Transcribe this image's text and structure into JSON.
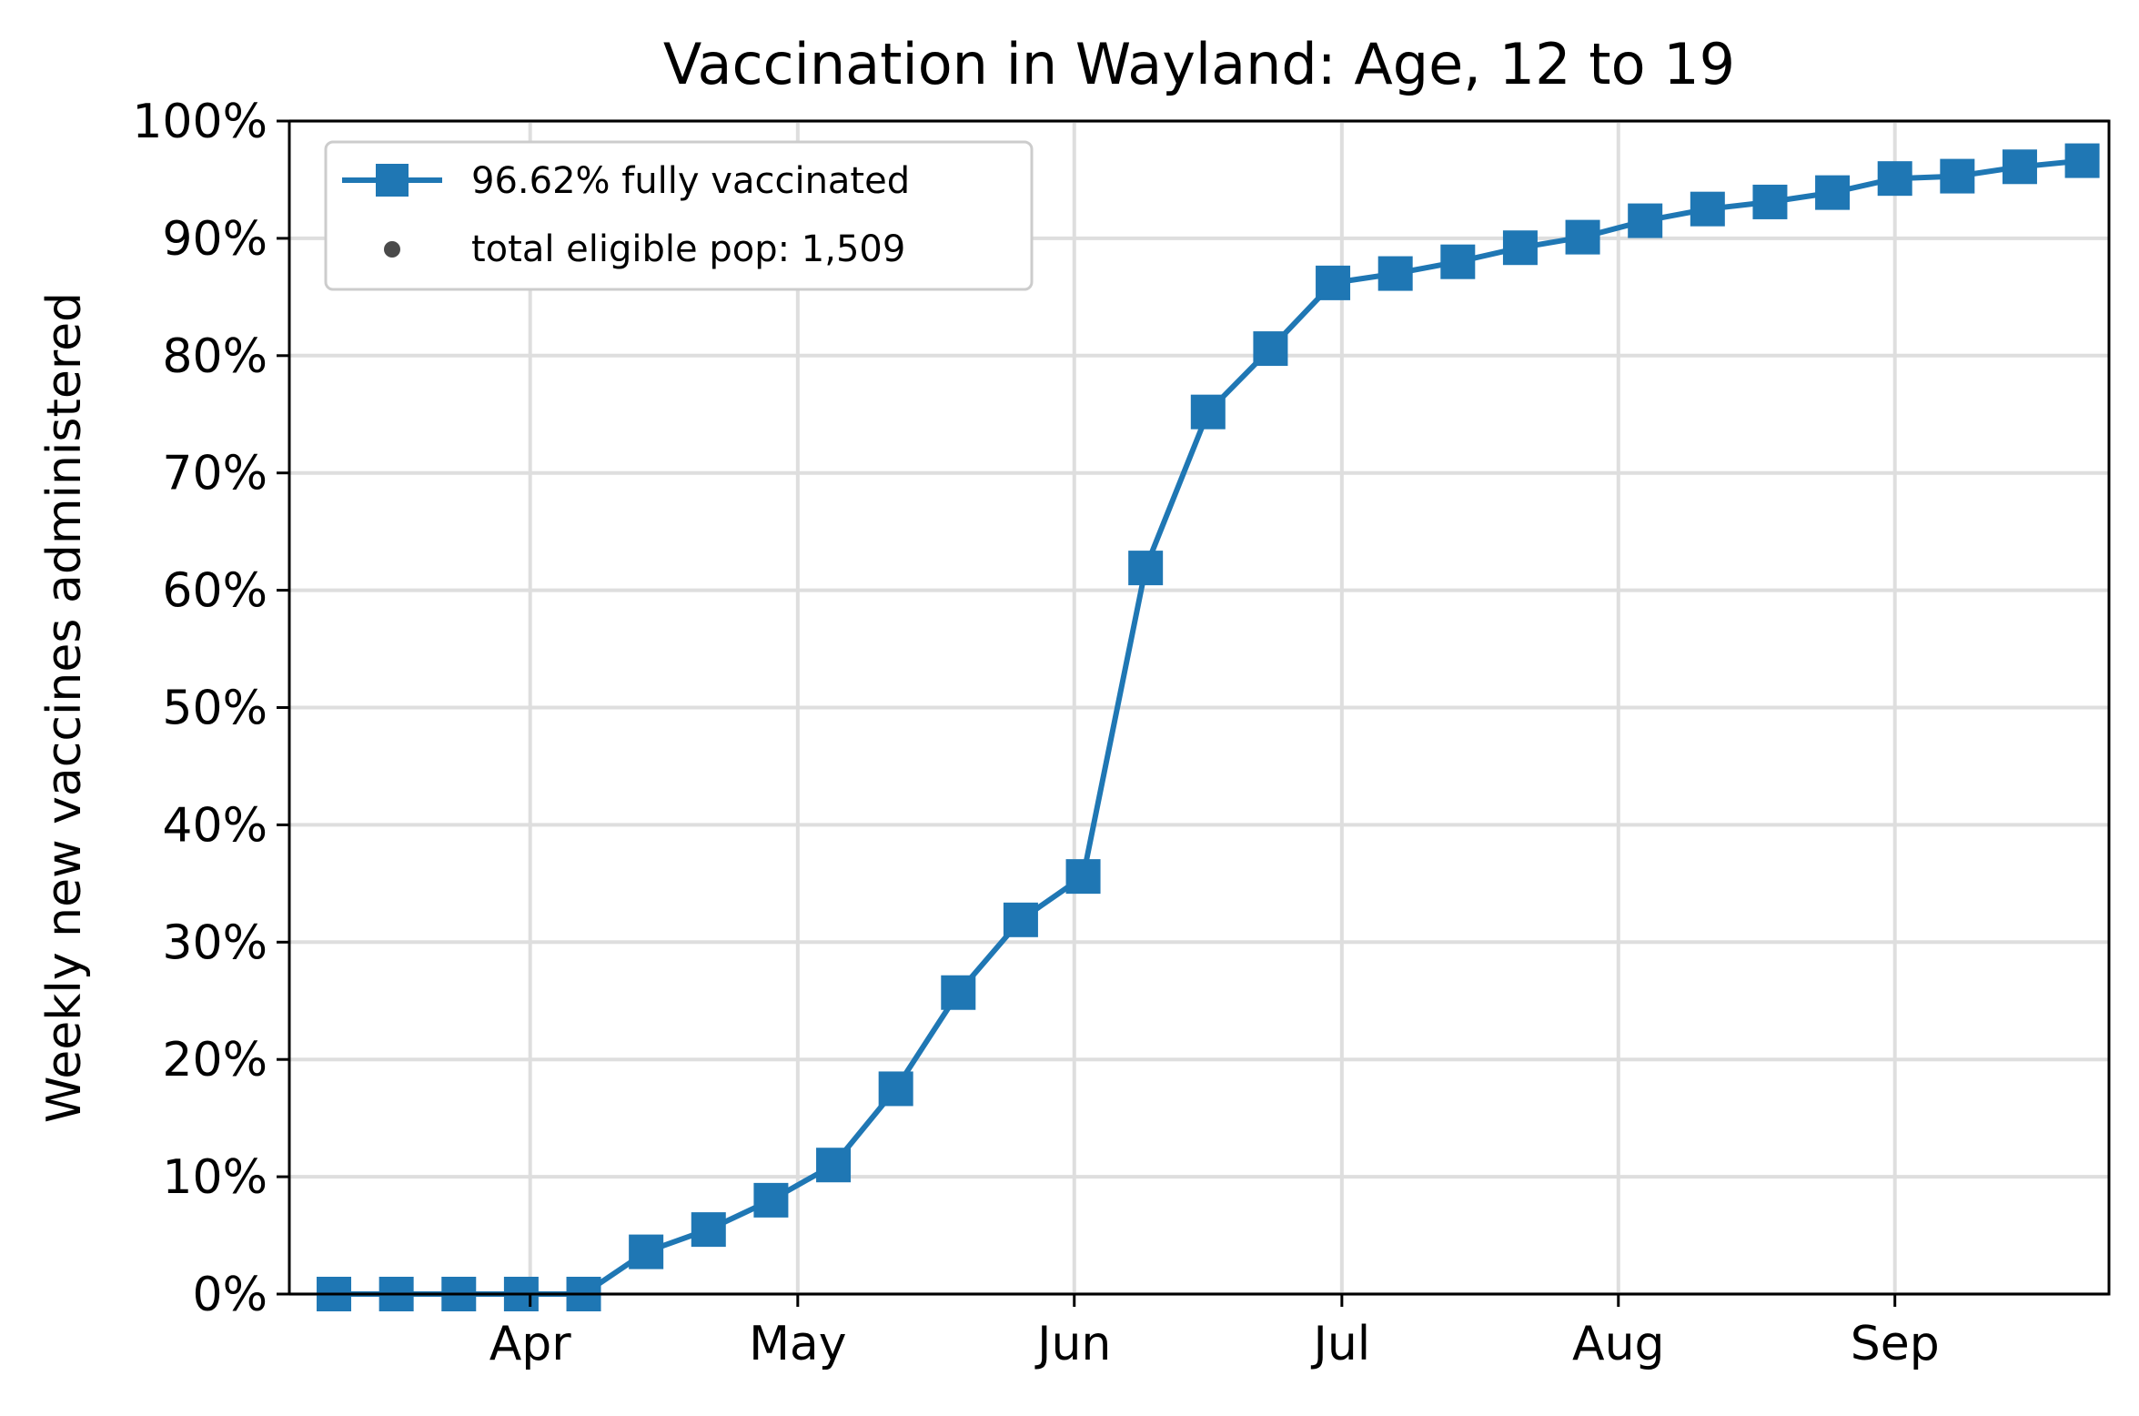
{
  "colors": {
    "series": "#1f77b4",
    "dot": "#4a4a4a"
  },
  "chart_data": {
    "type": "line",
    "title": "Vaccination in Wayland: Age, 12 to 19",
    "xlabel": "",
    "ylabel": "Weekly new vaccines administered",
    "x_axis": {
      "type": "date",
      "range": [
        "2021-03-05",
        "2021-09-25"
      ],
      "ticks": [
        {
          "date": "2021-04-01",
          "label": "Apr"
        },
        {
          "date": "2021-05-01",
          "label": "May"
        },
        {
          "date": "2021-06-01",
          "label": "Jun"
        },
        {
          "date": "2021-07-01",
          "label": "Jul"
        },
        {
          "date": "2021-08-01",
          "label": "Aug"
        },
        {
          "date": "2021-09-01",
          "label": "Sep"
        }
      ]
    },
    "ylim": [
      0,
      100
    ],
    "yticks": [
      {
        "value": 0,
        "label": "0%"
      },
      {
        "value": 10,
        "label": "10%"
      },
      {
        "value": 20,
        "label": "20%"
      },
      {
        "value": 30,
        "label": "30%"
      },
      {
        "value": 40,
        "label": "40%"
      },
      {
        "value": 50,
        "label": "50%"
      },
      {
        "value": 60,
        "label": "60%"
      },
      {
        "value": 70,
        "label": "70%"
      },
      {
        "value": 80,
        "label": "80%"
      },
      {
        "value": 90,
        "label": "90%"
      },
      {
        "value": 100,
        "label": "100%"
      }
    ],
    "grid": true,
    "legend": {
      "position": "top-left",
      "entries": [
        {
          "label": "96.62% fully vaccinated",
          "marker": "line-square"
        },
        {
          "label": "total eligible pop: 1,509",
          "marker": "dot"
        }
      ]
    },
    "series": [
      {
        "name": "96.62% fully vaccinated",
        "marker": "square",
        "points": [
          {
            "x": "2021-03-10",
            "y": 0.0
          },
          {
            "x": "2021-03-17",
            "y": 0.0
          },
          {
            "x": "2021-03-24",
            "y": 0.0
          },
          {
            "x": "2021-03-31",
            "y": 0.0
          },
          {
            "x": "2021-04-07",
            "y": 0.0
          },
          {
            "x": "2021-04-14",
            "y": 3.6
          },
          {
            "x": "2021-04-21",
            "y": 5.5
          },
          {
            "x": "2021-04-28",
            "y": 8.0
          },
          {
            "x": "2021-05-05",
            "y": 11.0
          },
          {
            "x": "2021-05-12",
            "y": 17.5
          },
          {
            "x": "2021-05-19",
            "y": 25.7
          },
          {
            "x": "2021-05-26",
            "y": 31.9
          },
          {
            "x": "2021-06-02",
            "y": 35.6
          },
          {
            "x": "2021-06-09",
            "y": 61.9
          },
          {
            "x": "2021-06-16",
            "y": 75.2
          },
          {
            "x": "2021-06-23",
            "y": 80.6
          },
          {
            "x": "2021-06-30",
            "y": 86.2
          },
          {
            "x": "2021-07-07",
            "y": 87.0
          },
          {
            "x": "2021-07-14",
            "y": 88.0
          },
          {
            "x": "2021-07-21",
            "y": 89.2
          },
          {
            "x": "2021-07-28",
            "y": 90.1
          },
          {
            "x": "2021-08-04",
            "y": 91.5
          },
          {
            "x": "2021-08-11",
            "y": 92.5
          },
          {
            "x": "2021-08-18",
            "y": 93.1
          },
          {
            "x": "2021-08-25",
            "y": 93.9
          },
          {
            "x": "2021-09-01",
            "y": 95.1
          },
          {
            "x": "2021-09-08",
            "y": 95.3
          },
          {
            "x": "2021-09-15",
            "y": 96.1
          },
          {
            "x": "2021-09-22",
            "y": 96.62
          }
        ]
      }
    ]
  }
}
